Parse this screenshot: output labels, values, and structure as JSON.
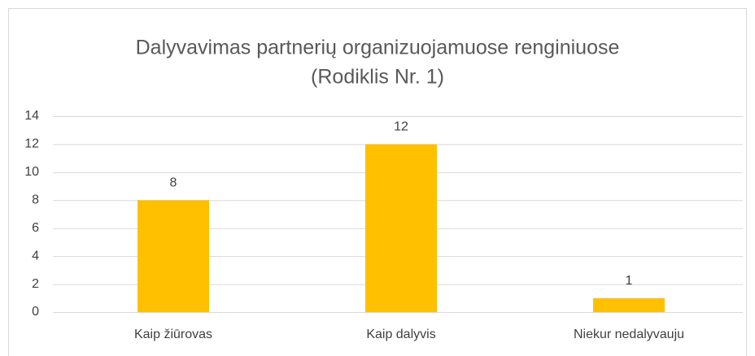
{
  "chart_data": {
    "type": "bar",
    "title": [
      "Dalyvavimas partnerių organizuojamuose renginiuose",
      "(Rodiklis Nr. 1)"
    ],
    "categories": [
      "Kaip žiūrovas",
      "Kaip dalyvis",
      "Niekur nedalyvauju"
    ],
    "values": [
      8,
      12,
      1
    ],
    "color": "#ffc000",
    "ylim": [
      0,
      14
    ],
    "yticks": [
      0,
      2,
      4,
      6,
      8,
      10,
      12,
      14
    ],
    "grid": true,
    "data_labels": true
  }
}
